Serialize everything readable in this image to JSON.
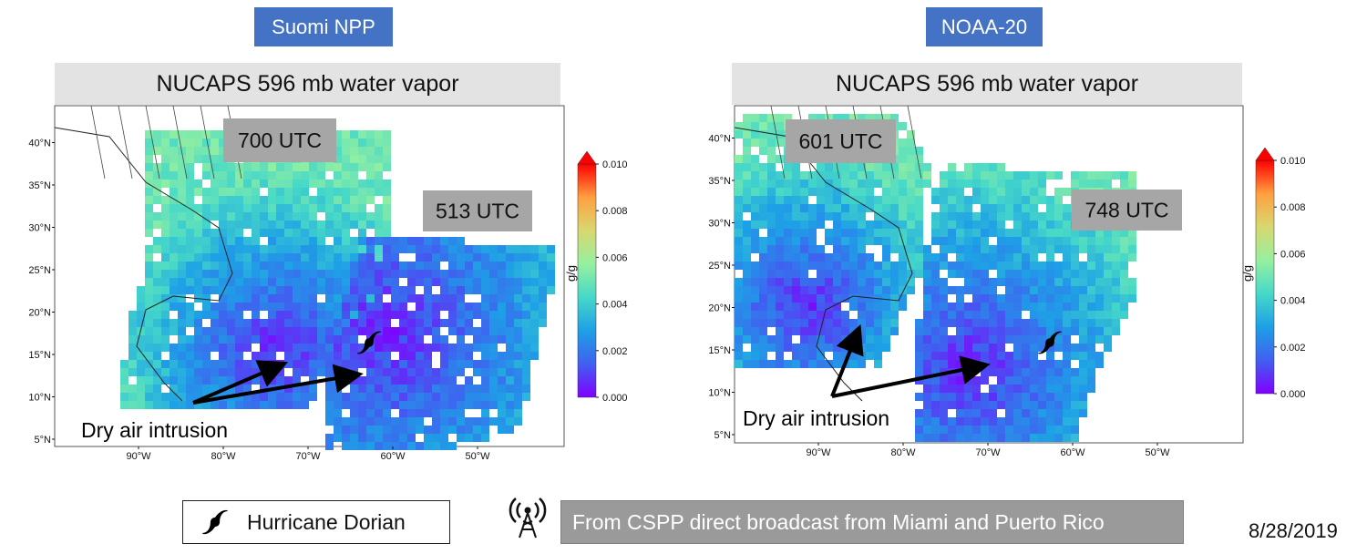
{
  "panels": [
    {
      "satellite": "Suomi NPP",
      "title": "NUCAPS 596 mb water vapor",
      "lat_labels": [
        "40°N",
        "35°N",
        "30°N",
        "25°N",
        "20°N",
        "15°N",
        "10°N",
        "5°N"
      ],
      "lon_labels": [
        "90°W",
        "80°W",
        "70°W",
        "60°W",
        "50°W"
      ],
      "time_boxes": [
        "700 UTC",
        "513 UTC"
      ],
      "annotation": "Dry air intrusion",
      "colorbar": {
        "unit": "g/g",
        "ticks": [
          "0.000",
          "0.002",
          "0.004",
          "0.006",
          "0.008",
          "0.010"
        ]
      }
    },
    {
      "satellite": "NOAA-20",
      "title": "NUCAPS 596 mb water vapor",
      "lat_labels": [
        "40°N",
        "35°N",
        "30°N",
        "25°N",
        "20°N",
        "15°N",
        "10°N",
        "5°N"
      ],
      "lon_labels": [
        "90°W",
        "80°W",
        "70°W",
        "60°W",
        "50°W"
      ],
      "time_boxes": [
        "601 UTC",
        "748 UTC"
      ],
      "annotation": "Dry air intrusion",
      "colorbar": {
        "unit": "g/g",
        "ticks": [
          "0.000",
          "0.002",
          "0.004",
          "0.006",
          "0.008",
          "0.010"
        ]
      }
    }
  ],
  "legend": {
    "label": "Hurricane Dorian",
    "icon": "hurricane-icon"
  },
  "source": {
    "text": "From CSPP direct broadcast from Miami and Puerto Rico",
    "icon": "antenna-icon"
  },
  "date": "8/28/2019",
  "colors": {
    "satellite_label": "#4472c4",
    "title_bar": "#e3e3e3",
    "time_box": "#a6a6a6",
    "colormap": [
      "#8000ff",
      "#4060f0",
      "#1ea0e6",
      "#46d8c8",
      "#96f0a0",
      "#d8d870",
      "#ffa040",
      "#ff0000"
    ]
  }
}
